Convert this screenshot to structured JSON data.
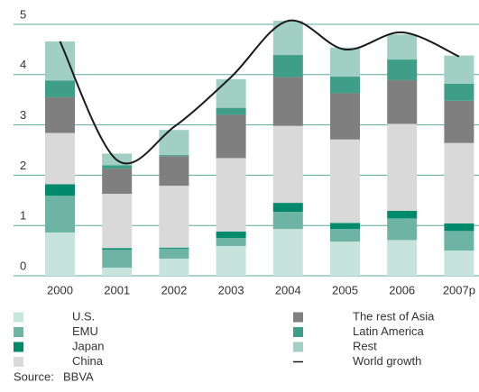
{
  "chart_data": {
    "type": "stacked_bar_line",
    "categories": [
      "2000",
      "2001",
      "2002",
      "2003",
      "2004",
      "2005",
      "2006",
      "2007p"
    ],
    "series": [
      {
        "name": "U.S.",
        "color": "#c6e4dc",
        "values": [
          0.86,
          0.16,
          0.34,
          0.59,
          0.93,
          0.68,
          0.71,
          0.5
        ]
      },
      {
        "name": "EMU",
        "color": "#6db4a4",
        "values": [
          0.73,
          0.36,
          0.2,
          0.16,
          0.34,
          0.25,
          0.43,
          0.39
        ]
      },
      {
        "name": "Japan",
        "color": "#008a6c",
        "values": [
          0.23,
          0.03,
          0.02,
          0.13,
          0.18,
          0.12,
          0.15,
          0.15
        ]
      },
      {
        "name": "China",
        "color": "#d9d9d9",
        "values": [
          1.02,
          1.08,
          1.23,
          1.46,
          1.53,
          1.66,
          1.73,
          1.6
        ]
      },
      {
        "name": "The rest of Asia",
        "color": "#7f7f7f",
        "values": [
          0.71,
          0.5,
          0.59,
          0.86,
          0.97,
          0.92,
          0.87,
          0.84
        ]
      },
      {
        "name": "Latin America",
        "color": "#3f9e88",
        "values": [
          0.33,
          0.07,
          0.02,
          0.14,
          0.44,
          0.33,
          0.41,
          0.34
        ]
      },
      {
        "name": "Rest",
        "color": "#a2cfc4",
        "values": [
          0.78,
          0.23,
          0.5,
          0.57,
          0.68,
          0.58,
          0.5,
          0.56
        ]
      },
      {
        "name": "World growth",
        "type": "line",
        "color": "#1a1a1a",
        "values": [
          4.66,
          2.3,
          2.96,
          3.95,
          5.07,
          4.5,
          4.84,
          4.36
        ]
      }
    ],
    "ylim": [
      0,
      5.3
    ],
    "yticks": [
      0,
      1,
      2,
      3,
      4,
      5
    ],
    "grid": true,
    "grid_color": "#5aa897",
    "source_label": "Source:",
    "source": "BBVA"
  }
}
